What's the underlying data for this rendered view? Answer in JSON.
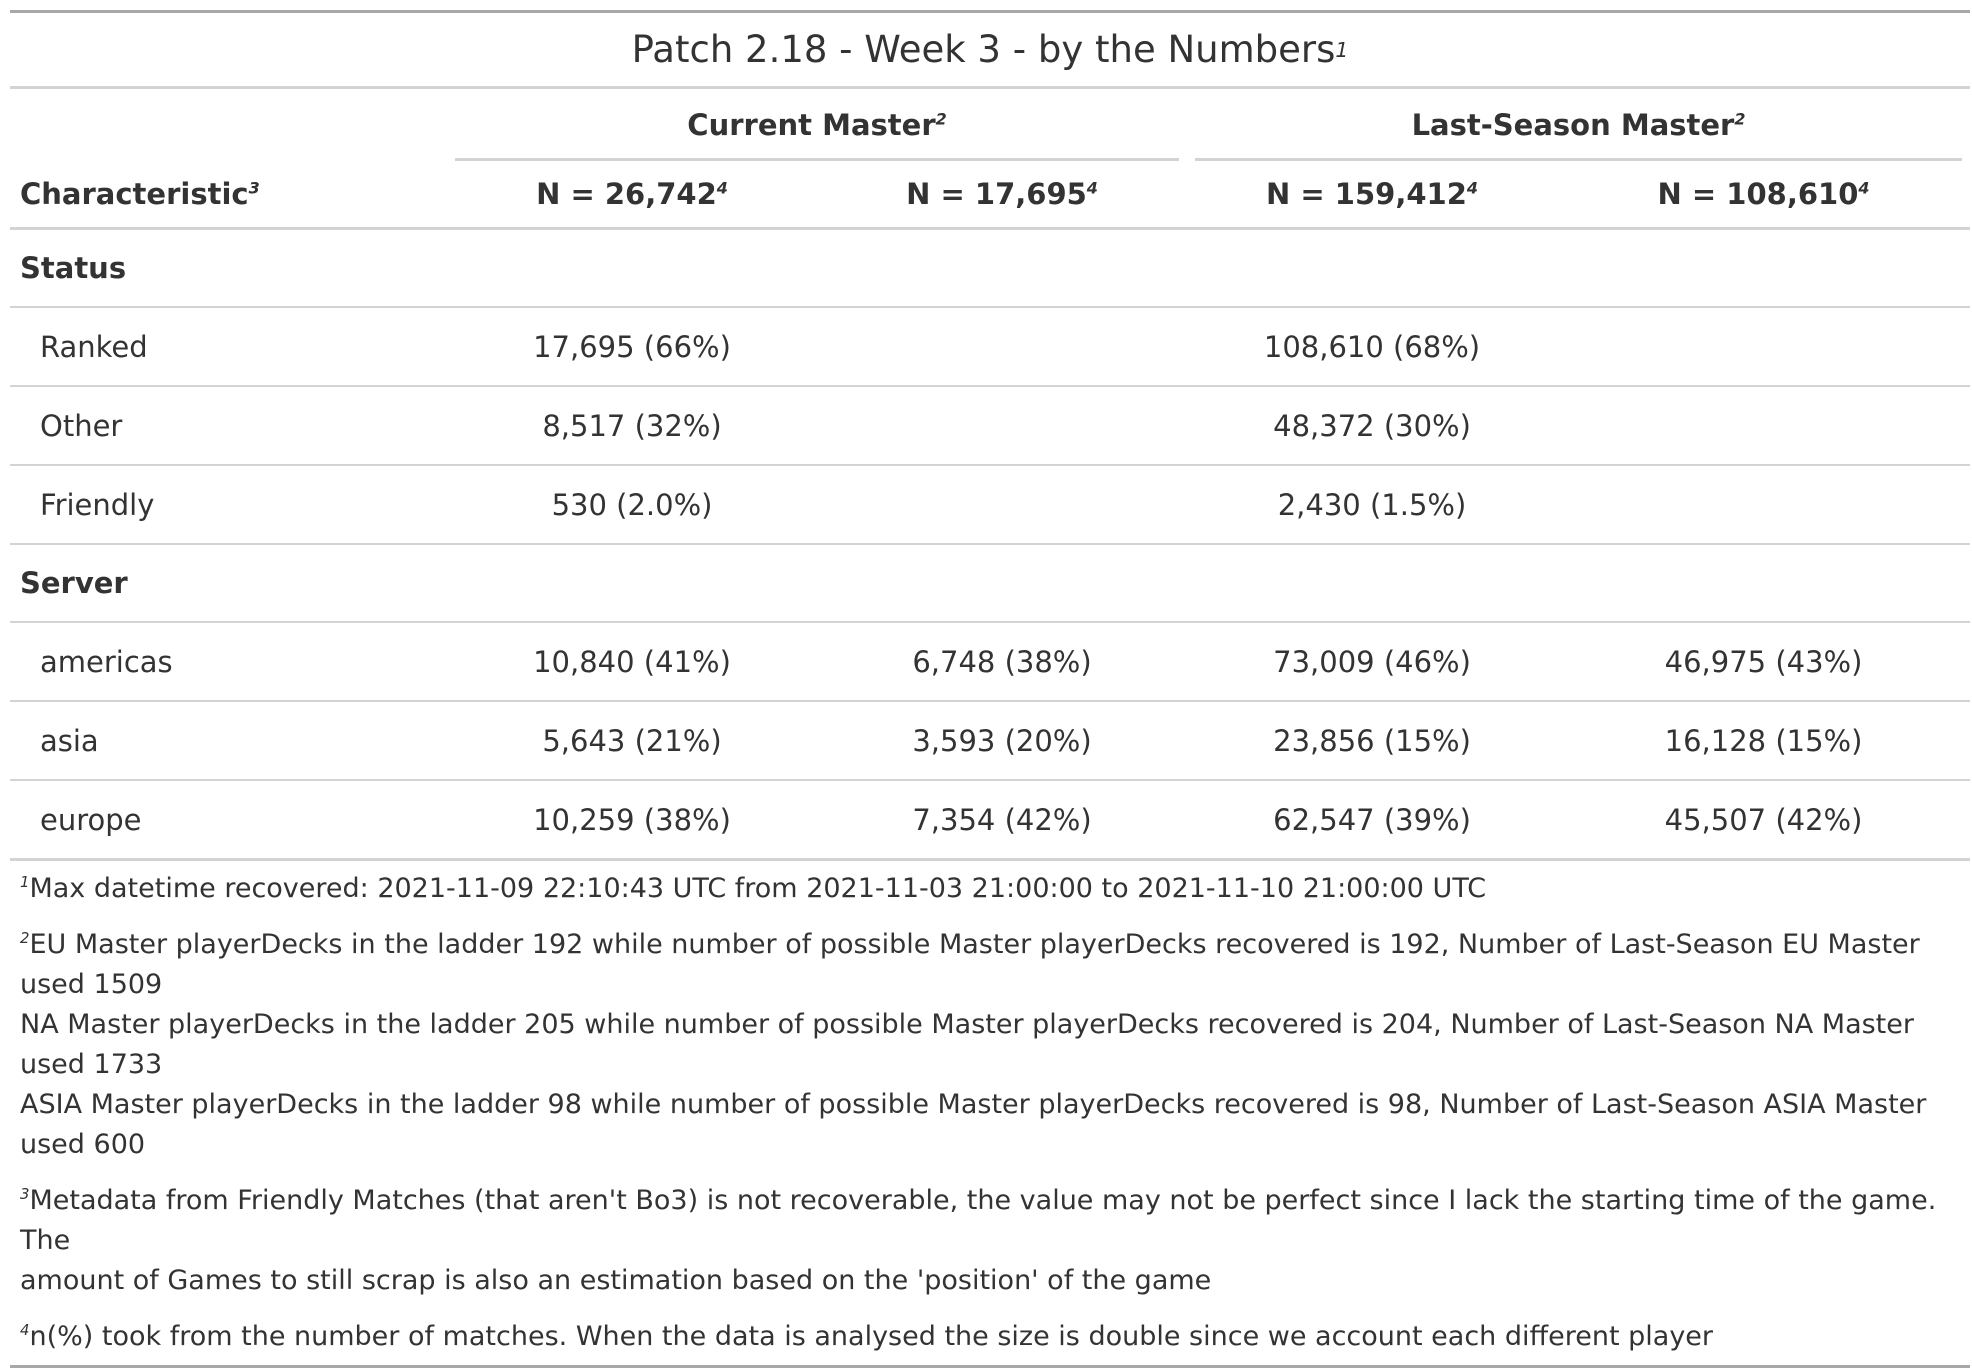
{
  "title": "Patch 2.18 - Week 3 - by the Numbers",
  "title_mark": "1",
  "spanners": [
    {
      "label": "Current Master",
      "mark": "2"
    },
    {
      "label": "Last-Season Master",
      "mark": "2"
    }
  ],
  "columns": {
    "characteristic": {
      "label": "Characteristic",
      "mark": "3"
    },
    "stats": [
      {
        "label": "N = 26,742",
        "mark": "4"
      },
      {
        "label": "N = 17,695",
        "mark": "4"
      },
      {
        "label": "N = 159,412",
        "mark": "4"
      },
      {
        "label": "N = 108,610",
        "mark": "4"
      }
    ]
  },
  "groups": [
    {
      "label": "Status",
      "rows": [
        {
          "label": "Ranked",
          "values": [
            "17,695 (66%)",
            "",
            "108,610 (68%)",
            ""
          ]
        },
        {
          "label": "Other",
          "values": [
            "8,517 (32%)",
            "",
            "48,372 (30%)",
            ""
          ]
        },
        {
          "label": "Friendly",
          "values": [
            "530 (2.0%)",
            "",
            "2,430 (1.5%)",
            ""
          ]
        }
      ]
    },
    {
      "label": "Server",
      "rows": [
        {
          "label": "americas",
          "values": [
            "10,840 (41%)",
            "6,748 (38%)",
            "73,009 (46%)",
            "46,975 (43%)"
          ]
        },
        {
          "label": "asia",
          "values": [
            "5,643 (21%)",
            "3,593 (20%)",
            "23,856 (15%)",
            "16,128 (15%)"
          ]
        },
        {
          "label": "europe",
          "values": [
            "10,259 (38%)",
            "7,354 (42%)",
            "62,547 (39%)",
            "45,507 (42%)"
          ]
        }
      ]
    }
  ],
  "footnotes": [
    {
      "mark": "1",
      "lines": [
        "Max datetime recovered: 2021-11-09 22:10:43 UTC from 2021-11-03 21:00:00 to 2021-11-10 21:00:00 UTC"
      ]
    },
    {
      "mark": "2",
      "lines": [
        "EU Master playerDecks in the ladder 192 while number of possible Master playerDecks recovered is 192, Number of Last-Season EU Master used 1509",
        "NA Master playerDecks in the ladder 205 while number of possible Master playerDecks recovered is 204, Number of Last-Season NA Master used 1733",
        "ASIA Master playerDecks in the ladder 98 while number of possible Master playerDecks recovered is 98, Number of Last-Season ASIA Master used 600"
      ]
    },
    {
      "mark": "3",
      "lines": [
        "Metadata from Friendly Matches (that aren't Bo3) is not recoverable, the value may not be perfect since I lack the starting time of the game. The",
        "amount of Games to still scrap is also an estimation based on the 'position' of the game"
      ]
    },
    {
      "mark": "4",
      "lines": [
        "n(%) took from the number of matches. When the data is analysed the size is double since we account each different player"
      ]
    }
  ]
}
